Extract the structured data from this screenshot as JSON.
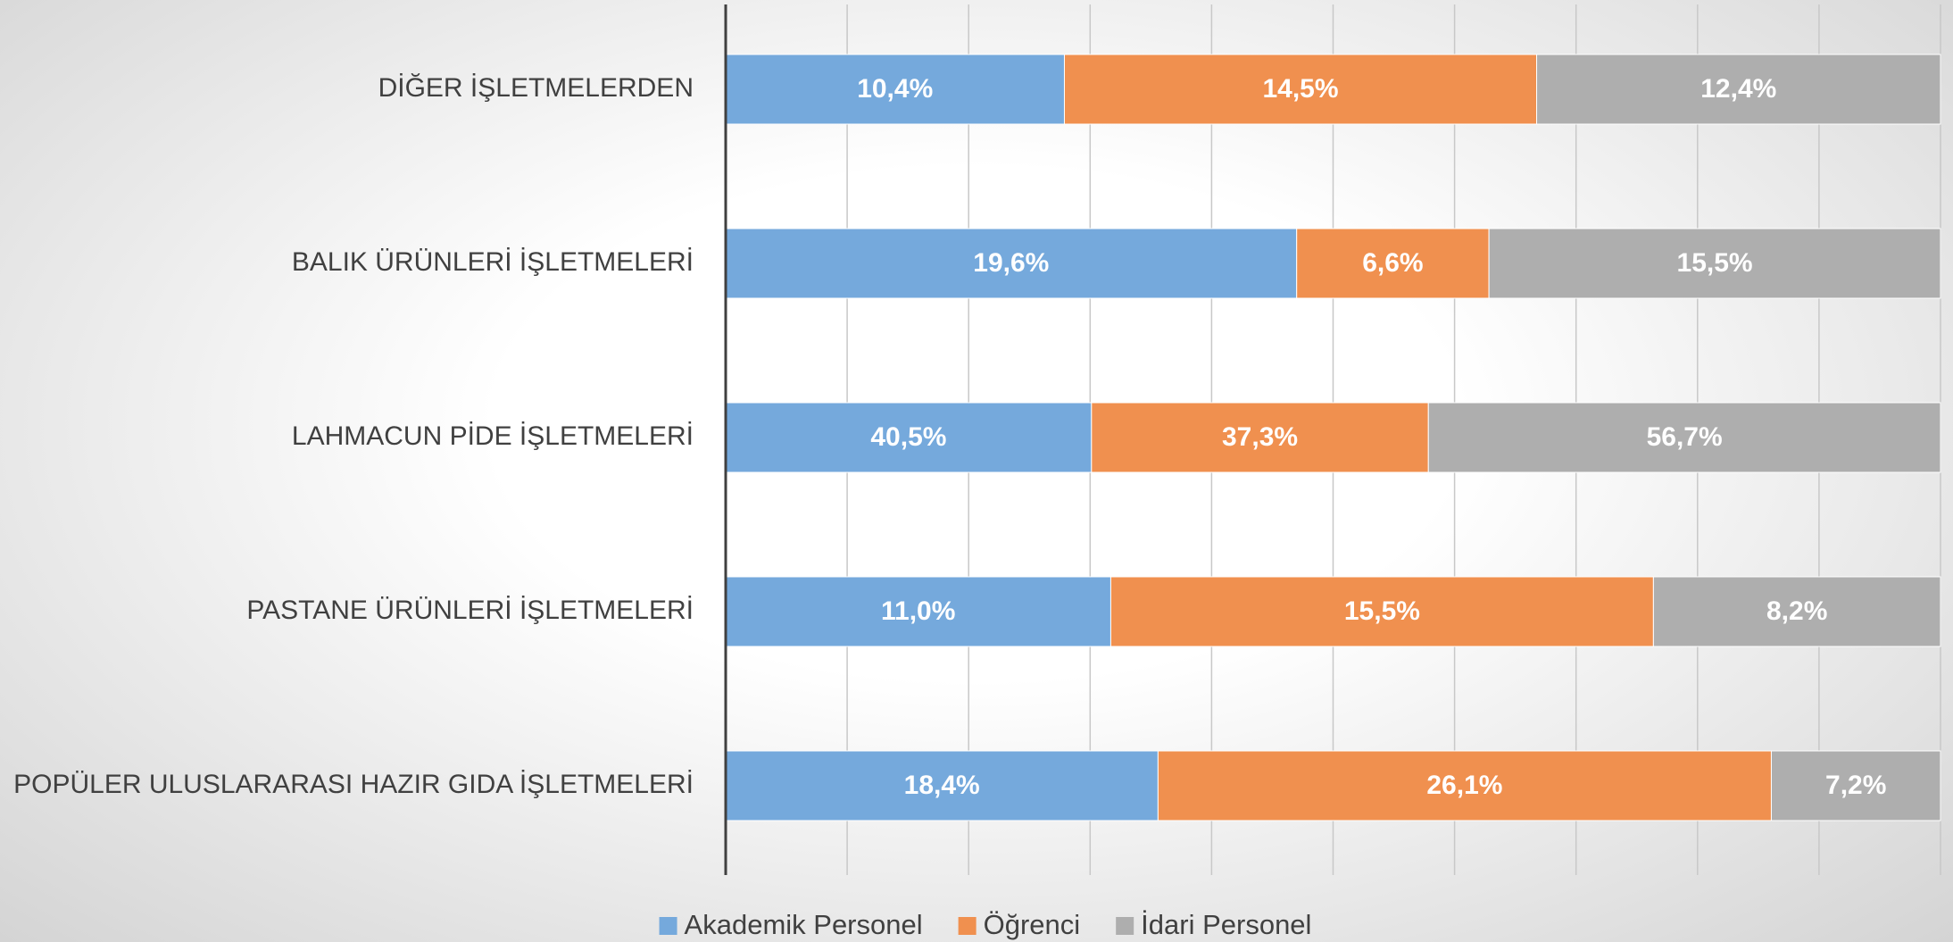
{
  "chart_data": {
    "type": "bar",
    "orientation": "horizontal",
    "stacked": "percent",
    "categories": [
      "DİĞER İŞLETMELERDEN",
      "BALIK ÜRÜNLERİ İŞLETMELERİ",
      "LAHMACUN PİDE İŞLETMELERİ",
      "PASTANE ÜRÜNLERİ İŞLETMELERİ",
      "POPÜLER ULUSLARARASI HAZIR GIDA İŞLETMELERİ"
    ],
    "series": [
      {
        "name": "Akademik Personel",
        "color": "#75a9dc",
        "values": [
          10.4,
          19.6,
          40.5,
          11.0,
          18.4
        ],
        "value_labels": [
          "10,4%",
          "19,6%",
          "40,5%",
          "11,0%",
          "18,4%"
        ]
      },
      {
        "name": "Öğrenci",
        "color": "#f0904f",
        "values": [
          14.5,
          6.6,
          37.3,
          15.5,
          26.1
        ],
        "value_labels": [
          "14,5%",
          "6,6%",
          "37,3%",
          "15,5%",
          "26,1%"
        ]
      },
      {
        "name": "İdari Personel",
        "color": "#aeaeae",
        "values": [
          12.4,
          15.5,
          56.7,
          8.2,
          7.2
        ],
        "value_labels": [
          "12,4%",
          "15,5%",
          "56,7%",
          "8,2%",
          "7,2%"
        ]
      }
    ],
    "xlim": [
      0,
      100
    ],
    "xticks": [
      0,
      10,
      20,
      30,
      40,
      50,
      60,
      70,
      80,
      90,
      100
    ],
    "show_tick_labels": false,
    "grid": true,
    "legend": "bottom"
  }
}
